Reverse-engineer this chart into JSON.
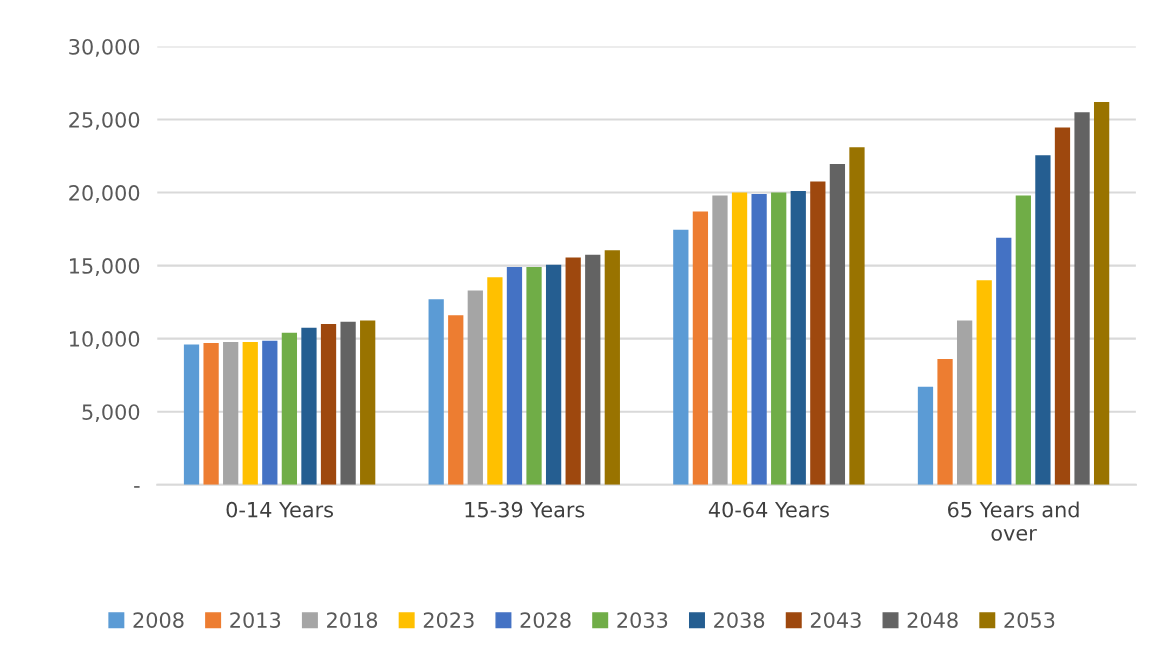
{
  "chart_data": {
    "type": "bar",
    "categories": [
      "0-14 Years",
      "15-39 Years",
      "40-64 Years",
      "65 Years and\nover"
    ],
    "series": [
      {
        "name": "2008",
        "color": "#5b9bd5",
        "values": [
          9600,
          12700,
          17450,
          6700
        ]
      },
      {
        "name": "2013",
        "color": "#ed7d31",
        "values": [
          9700,
          11600,
          18700,
          8600
        ]
      },
      {
        "name": "2018",
        "color": "#a5a5a5",
        "values": [
          9770,
          13300,
          19800,
          11250
        ]
      },
      {
        "name": "2023",
        "color": "#ffc000",
        "values": [
          9770,
          14200,
          20000,
          14000
        ]
      },
      {
        "name": "2028",
        "color": "#4472c4",
        "values": [
          9850,
          14900,
          19900,
          16900
        ]
      },
      {
        "name": "2033",
        "color": "#70ad47",
        "values": [
          10400,
          14900,
          20000,
          19800
        ]
      },
      {
        "name": "2038",
        "color": "#255e91",
        "values": [
          10750,
          15050,
          20100,
          22550
        ]
      },
      {
        "name": "2043",
        "color": "#9e480e",
        "values": [
          11000,
          15550,
          20750,
          24450
        ]
      },
      {
        "name": "2048",
        "color": "#636363",
        "values": [
          11150,
          15750,
          21950,
          25500
        ]
      },
      {
        "name": "2053",
        "color": "#997300",
        "values": [
          11250,
          16050,
          23100,
          26200
        ]
      }
    ],
    "ylim": [
      0,
      30000
    ],
    "yticks": [
      {
        "value": 0,
        "label": "-"
      },
      {
        "value": 5000,
        "label": "5,000"
      },
      {
        "value": 10000,
        "label": "10,000"
      },
      {
        "value": 15000,
        "label": "15,000"
      },
      {
        "value": 20000,
        "label": "20,000"
      },
      {
        "value": 25000,
        "label": "25,000"
      },
      {
        "value": 30000,
        "label": "30,000"
      }
    ],
    "grid": "y",
    "legend": "bottom"
  }
}
